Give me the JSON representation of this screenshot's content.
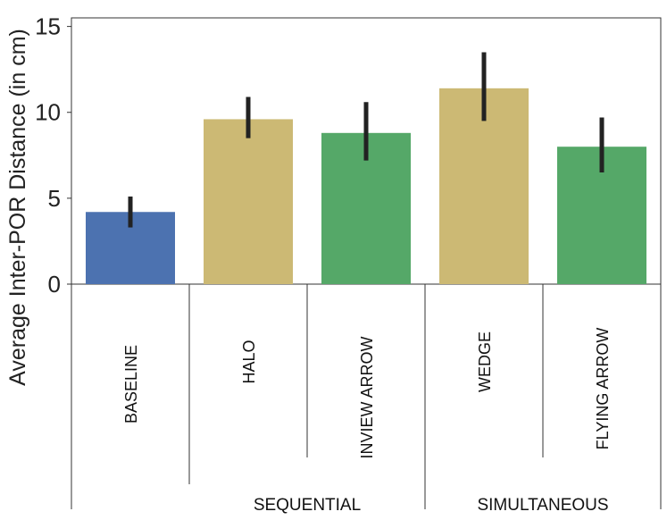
{
  "chart_data": {
    "type": "bar",
    "title": "",
    "xlabel": "",
    "ylabel": "Average Inter-POR Distance (in cm)",
    "ylim": [
      0,
      15.5
    ],
    "yticks": [
      0,
      5,
      10,
      15
    ],
    "grid": false,
    "categories": [
      "BASELINE",
      "HALO",
      "INVIEW ARROW",
      "WEDGE",
      "FLYING ARROW"
    ],
    "values": [
      4.2,
      9.6,
      8.8,
      11.4,
      8.0
    ],
    "error_low": [
      3.3,
      8.5,
      7.2,
      9.5,
      6.5
    ],
    "error_high": [
      5.1,
      10.9,
      10.6,
      13.5,
      9.7
    ],
    "bar_colors": [
      "#4c72b0",
      "#ccb974",
      "#55a868",
      "#ccb974",
      "#55a868"
    ],
    "groups": [
      {
        "label": "SEQUENTIAL",
        "categories": [
          "HALO",
          "INVIEW ARROW"
        ]
      },
      {
        "label": "SIMULTANEOUS",
        "categories": [
          "WEDGE",
          "FLYING ARROW"
        ]
      }
    ]
  }
}
